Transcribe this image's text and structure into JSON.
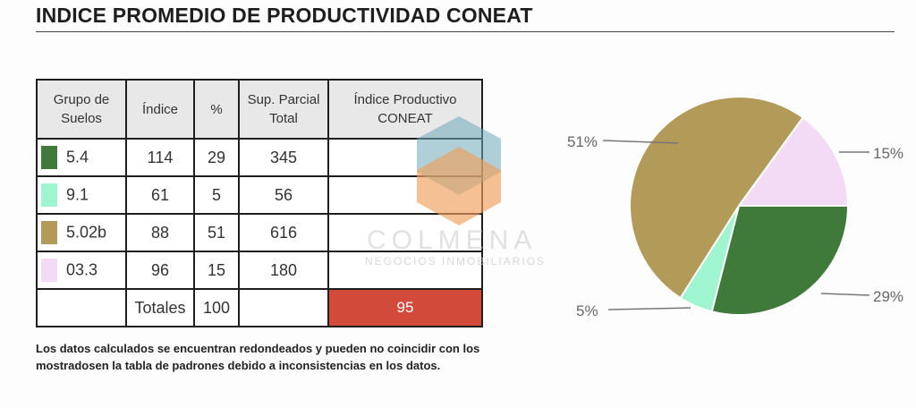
{
  "title": "INDICE PROMEDIO DE PRODUCTIVIDAD CONEAT",
  "table": {
    "headers": [
      "Grupo de Suelos",
      "Índice",
      "%",
      "Sup. Parcial Total",
      "Índice Productivo CONEAT"
    ],
    "rows": [
      {
        "grupo": "5.4",
        "indice": "114",
        "pct": "29",
        "sup": "345",
        "color": "#3f7a3a"
      },
      {
        "grupo": "9.1",
        "indice": "61",
        "pct": "5",
        "sup": "56",
        "color": "#9ff5d0"
      },
      {
        "grupo": "5.02b",
        "indice": "88",
        "pct": "51",
        "sup": "616",
        "color": "#b29a58"
      },
      {
        "grupo": "03.3",
        "indice": "96",
        "pct": "15",
        "sup": "180",
        "color": "#f3dbf6"
      }
    ],
    "totals_label": "Totales",
    "totals_pct": "100",
    "indice_productivo": "95"
  },
  "note": "Los datos calculados se encuentran redondeados y pueden no coincidir con los mostradosen la tabla de padrones debido a inconsistencias en los datos.",
  "watermark": {
    "name": "COLMENA",
    "subtitle": "NEGOCIOS INMOBILIARIOS"
  },
  "chart_data": {
    "type": "pie",
    "title": "",
    "slices": [
      {
        "category": "5.4",
        "value": 29,
        "label": "29%",
        "color": "#3f7a3a"
      },
      {
        "category": "9.1",
        "value": 5,
        "label": "5%",
        "color": "#9ff5d0"
      },
      {
        "category": "5.02b",
        "value": 51,
        "label": "51%",
        "color": "#b29a58"
      },
      {
        "category": "03.3",
        "value": 15,
        "label": "15%",
        "color": "#f3dbf6"
      }
    ]
  }
}
